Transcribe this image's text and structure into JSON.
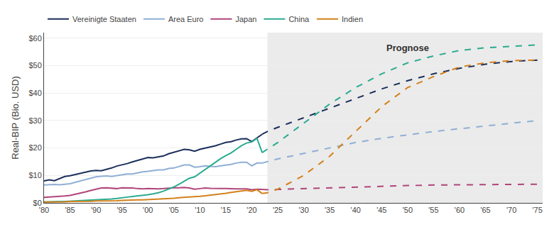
{
  "chart_data": {
    "type": "line",
    "ylabel": "Real-BIP (Bio. USD)",
    "xlim": [
      1980,
      2076
    ],
    "xticks": [
      {
        "value": 1980,
        "label": "'80"
      },
      {
        "value": 1985,
        "label": "'85"
      },
      {
        "value": 1990,
        "label": "'90"
      },
      {
        "value": 1995,
        "label": "'95"
      },
      {
        "value": 2000,
        "label": "'00"
      },
      {
        "value": 2005,
        "label": "'05"
      },
      {
        "value": 2010,
        "label": "'10"
      },
      {
        "value": 2015,
        "label": "'15"
      },
      {
        "value": 2020,
        "label": "'20"
      },
      {
        "value": 2025,
        "label": "'25"
      },
      {
        "value": 2030,
        "label": "'30"
      },
      {
        "value": 2035,
        "label": "'35"
      },
      {
        "value": 2040,
        "label": "'40"
      },
      {
        "value": 2045,
        "label": "'45"
      },
      {
        "value": 2050,
        "label": "'50"
      },
      {
        "value": 2055,
        "label": "'55"
      },
      {
        "value": 2060,
        "label": "'60"
      },
      {
        "value": 2065,
        "label": "'65"
      },
      {
        "value": 2070,
        "label": "'70"
      },
      {
        "value": 2075,
        "label": "'75"
      }
    ],
    "ylim": [
      0,
      62
    ],
    "yticks": [
      {
        "value": 0,
        "label": "$0"
      },
      {
        "value": 10,
        "label": "$10"
      },
      {
        "value": 20,
        "label": "$20"
      },
      {
        "value": 30,
        "label": "$30"
      },
      {
        "value": 40,
        "label": "$40"
      },
      {
        "value": 50,
        "label": "$50"
      },
      {
        "value": 60,
        "label": "$60"
      }
    ],
    "grid": "y",
    "legend": "top",
    "shade": {
      "x": [
        2023,
        2076
      ],
      "color": "#ebebeb"
    },
    "annotations": [
      {
        "text": "Prognose",
        "x": 2050,
        "y": 59
      }
    ],
    "series": [
      {
        "name": "Vereinigte Staaten",
        "color": "#1a2f5a",
        "line_style": "solid",
        "x": [
          1980,
          1981,
          1982,
          1983,
          1984,
          1985,
          1986,
          1987,
          1988,
          1989,
          1990,
          1991,
          1992,
          1993,
          1994,
          1995,
          1996,
          1997,
          1998,
          1999,
          2000,
          2001,
          2002,
          2003,
          2004,
          2005,
          2006,
          2007,
          2008,
          2009,
          2010,
          2011,
          2012,
          2013,
          2014,
          2015,
          2016,
          2017,
          2018,
          2019,
          2020,
          2021,
          2022
        ],
        "values": [
          8.0,
          8.4,
          8.1,
          8.8,
          9.6,
          9.9,
          10.3,
          10.7,
          11.2,
          11.6,
          11.8,
          11.7,
          12.2,
          12.7,
          13.4,
          13.8,
          14.3,
          14.9,
          15.4,
          16.0,
          16.5,
          16.4,
          16.7,
          17.1,
          17.9,
          18.4,
          19.0,
          19.5,
          19.3,
          18.8,
          19.5,
          19.9,
          20.4,
          20.8,
          21.4,
          22.0,
          22.3,
          22.9,
          23.3,
          23.4,
          22.3,
          23.6,
          25.0
        ]
      },
      {
        "name": "Vereinigte Staaten",
        "color": "#1a2f5a",
        "line_style": "dashed",
        "x": [
          2022,
          2023,
          2025,
          2030,
          2035,
          2040,
          2045,
          2050,
          2055,
          2060,
          2065,
          2070,
          2075
        ],
        "values": [
          25.0,
          26.0,
          27.5,
          31.0,
          34.5,
          38.0,
          41.5,
          44.5,
          47.0,
          49.0,
          50.5,
          51.5,
          52.0
        ]
      },
      {
        "name": "Area Euro",
        "color": "#8fafd4",
        "line_style": "solid",
        "x": [
          1980,
          1981,
          1982,
          1983,
          1984,
          1985,
          1986,
          1987,
          1988,
          1989,
          1990,
          1991,
          1992,
          1993,
          1994,
          1995,
          1996,
          1997,
          1998,
          1999,
          2000,
          2001,
          2002,
          2003,
          2004,
          2005,
          2006,
          2007,
          2008,
          2009,
          2010,
          2011,
          2012,
          2013,
          2014,
          2015,
          2016,
          2017,
          2018,
          2019,
          2020,
          2021,
          2022
        ],
        "values": [
          6.5,
          6.6,
          6.7,
          6.6,
          6.8,
          7.0,
          7.5,
          8.0,
          8.5,
          9.0,
          9.5,
          9.7,
          9.8,
          9.6,
          9.9,
          10.2,
          10.5,
          10.5,
          11.0,
          11.3,
          11.5,
          11.7,
          12.0,
          12.0,
          12.5,
          12.7,
          13.2,
          13.8,
          13.8,
          13.0,
          13.2,
          13.5,
          13.3,
          13.2,
          13.5,
          13.8,
          14.0,
          14.5,
          14.8,
          14.8,
          13.5,
          14.5,
          14.5
        ]
      },
      {
        "name": "Area Euro",
        "color": "#8fafd4",
        "line_style": "dashed",
        "x": [
          2022,
          2023,
          2025,
          2030,
          2035,
          2040,
          2045,
          2050,
          2055,
          2060,
          2065,
          2070,
          2075
        ],
        "values": [
          14.5,
          15.0,
          16.0,
          18.0,
          20.0,
          22.0,
          23.5,
          24.8,
          26.0,
          27.0,
          28.0,
          29.0,
          30.0
        ]
      },
      {
        "name": "Japan",
        "color": "#b0457a",
        "line_style": "solid",
        "x": [
          1980,
          1981,
          1982,
          1983,
          1984,
          1985,
          1986,
          1987,
          1988,
          1989,
          1990,
          1991,
          1992,
          1993,
          1994,
          1995,
          1996,
          1997,
          1998,
          1999,
          2000,
          2001,
          2002,
          2003,
          2004,
          2005,
          2006,
          2007,
          2008,
          2009,
          2010,
          2011,
          2012,
          2013,
          2014,
          2015,
          2016,
          2017,
          2018,
          2019,
          2020,
          2021,
          2022
        ],
        "values": [
          2.0,
          2.1,
          2.2,
          2.4,
          2.5,
          2.7,
          3.1,
          3.5,
          4.0,
          4.5,
          5.0,
          5.4,
          5.5,
          5.3,
          5.2,
          5.5,
          5.5,
          5.4,
          5.2,
          5.1,
          5.2,
          5.1,
          5.1,
          5.2,
          5.4,
          5.5,
          5.5,
          5.6,
          5.4,
          5.0,
          5.2,
          5.4,
          5.3,
          5.2,
          5.2,
          5.2,
          5.1,
          5.1,
          5.1,
          5.1,
          4.8,
          5.0,
          4.9
        ]
      },
      {
        "name": "Japan",
        "color": "#b0457a",
        "line_style": "dashed",
        "x": [
          2022,
          2023,
          2025,
          2030,
          2035,
          2040,
          2045,
          2050,
          2055,
          2060,
          2065,
          2070,
          2075
        ],
        "values": [
          4.9,
          4.8,
          4.9,
          5.2,
          5.5,
          5.8,
          6.0,
          6.3,
          6.5,
          6.6,
          6.7,
          6.7,
          6.8
        ]
      },
      {
        "name": "China",
        "color": "#2aab8f",
        "line_style": "solid",
        "x": [
          1980,
          1981,
          1982,
          1983,
          1984,
          1985,
          1986,
          1987,
          1988,
          1989,
          1990,
          1991,
          1992,
          1993,
          1994,
          1995,
          1996,
          1997,
          1998,
          1999,
          2000,
          2001,
          2002,
          2003,
          2004,
          2005,
          2006,
          2007,
          2008,
          2009,
          2010,
          2011,
          2012,
          2013,
          2014,
          2015,
          2016,
          2017,
          2018,
          2019,
          2020,
          2021,
          2022
        ],
        "values": [
          0.3,
          0.4,
          0.4,
          0.5,
          0.5,
          0.6,
          0.7,
          0.8,
          0.9,
          0.9,
          1.0,
          1.1,
          1.2,
          1.4,
          1.6,
          1.9,
          2.1,
          2.3,
          2.5,
          2.7,
          3.0,
          3.3,
          3.7,
          4.3,
          5.0,
          5.8,
          6.8,
          8.0,
          9.0,
          9.5,
          10.8,
          12.3,
          13.6,
          14.8,
          16.1,
          17.2,
          18.2,
          19.5,
          20.8,
          21.8,
          22.2,
          23.5,
          18.3
        ]
      },
      {
        "name": "China",
        "color": "#2aab8f",
        "line_style": "dashed",
        "x": [
          2022,
          2023,
          2025,
          2030,
          2035,
          2040,
          2045,
          2050,
          2055,
          2060,
          2065,
          2070,
          2075
        ],
        "values": [
          18.3,
          19.5,
          22.0,
          29.0,
          36.0,
          42.0,
          47.0,
          51.0,
          53.5,
          55.5,
          56.5,
          57.0,
          57.5
        ]
      },
      {
        "name": "Indien",
        "color": "#d4801a",
        "line_style": "solid",
        "x": [
          1980,
          1981,
          1982,
          1983,
          1984,
          1985,
          1986,
          1987,
          1988,
          1989,
          1990,
          1991,
          1992,
          1993,
          1994,
          1995,
          1996,
          1997,
          1998,
          1999,
          2000,
          2001,
          2002,
          2003,
          2004,
          2005,
          2006,
          2007,
          2008,
          2009,
          2010,
          2011,
          2012,
          2013,
          2014,
          2015,
          2016,
          2017,
          2018,
          2019,
          2020,
          2021,
          2022
        ],
        "values": [
          0.3,
          0.3,
          0.4,
          0.4,
          0.4,
          0.5,
          0.5,
          0.5,
          0.6,
          0.6,
          0.7,
          0.7,
          0.7,
          0.8,
          0.8,
          0.9,
          1.0,
          1.0,
          1.1,
          1.1,
          1.2,
          1.2,
          1.3,
          1.4,
          1.5,
          1.7,
          1.9,
          2.0,
          2.1,
          2.2,
          2.4,
          2.6,
          2.8,
          3.0,
          3.2,
          3.5,
          3.8,
          4.1,
          4.4,
          4.6,
          4.2,
          4.8,
          3.4
        ]
      },
      {
        "name": "Indien",
        "color": "#d4801a",
        "line_style": "dashed",
        "x": [
          2022,
          2023,
          2025,
          2030,
          2035,
          2040,
          2045,
          2050,
          2055,
          2060,
          2065,
          2070,
          2075
        ],
        "values": [
          3.4,
          3.7,
          5.0,
          10.0,
          17.0,
          26.0,
          35.0,
          42.0,
          46.0,
          49.5,
          51.0,
          51.8,
          52.0
        ]
      }
    ]
  }
}
